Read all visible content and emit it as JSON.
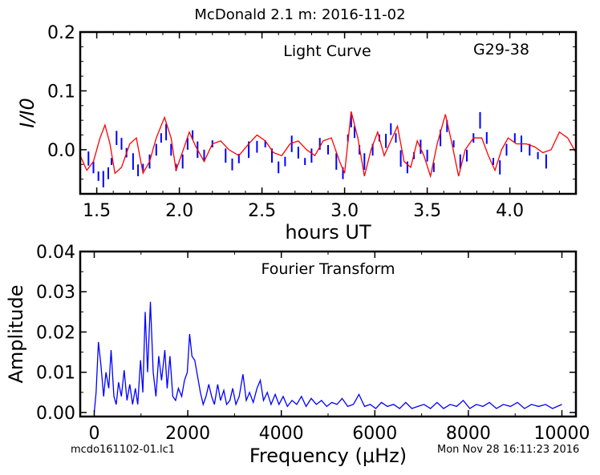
{
  "figure": {
    "title": "McDonald 2.1 m:  2016-11-02",
    "footer_left": "mcdo161102-01.lc1",
    "footer_right": "Mon Nov 28 16:11:23 2016"
  },
  "colors": {
    "data": "#0000ff",
    "fit": "#ff0000",
    "axes": "#000000"
  },
  "chart_data": [
    {
      "type": "line",
      "annotation": "Light Curve",
      "annotation2": "G29-38",
      "xlabel": "hours UT",
      "ylabel": "I/I0",
      "xlim": [
        1.4,
        4.4
      ],
      "ylim": [
        -0.075,
        0.2
      ],
      "xticks": [
        1.5,
        2.0,
        2.5,
        3.0,
        3.5,
        4.0
      ],
      "xtick_labels": [
        "1.5",
        "2.0",
        "2.5",
        "3.0",
        "3.5",
        "4.0"
      ],
      "yticks": [
        0.0,
        0.1,
        0.2
      ],
      "ytick_labels": [
        "0.0",
        "0.1",
        "0.2"
      ],
      "grid": false,
      "series": [
        {
          "kind": "data",
          "style": "blue segments",
          "points": [
            [
              1.45,
              -0.015
            ],
            [
              1.48,
              -0.03
            ],
            [
              1.51,
              -0.045
            ],
            [
              1.54,
              -0.05
            ],
            [
              1.57,
              -0.04
            ],
            [
              1.59,
              -0.02
            ],
            [
              1.62,
              0.02
            ],
            [
              1.65,
              0.01
            ],
            [
              1.68,
              -0.005
            ],
            [
              1.72,
              -0.02
            ],
            [
              1.75,
              -0.035
            ],
            [
              1.78,
              -0.03
            ],
            [
              1.82,
              -0.02
            ],
            [
              1.86,
              0.0
            ],
            [
              1.89,
              0.02
            ],
            [
              1.92,
              0.03
            ],
            [
              1.95,
              0.0
            ],
            [
              1.98,
              -0.03
            ],
            [
              2.02,
              -0.02
            ],
            [
              2.05,
              0.01
            ],
            [
              2.08,
              0.025
            ],
            [
              2.11,
              0.0
            ],
            [
              2.15,
              -0.01
            ],
            [
              2.2,
              0.01
            ],
            [
              2.28,
              -0.01
            ],
            [
              2.32,
              -0.025
            ],
            [
              2.36,
              -0.015
            ],
            [
              2.42,
              0.0
            ],
            [
              2.47,
              0.005
            ],
            [
              2.52,
              0.01
            ],
            [
              2.56,
              -0.01
            ],
            [
              2.6,
              -0.03
            ],
            [
              2.64,
              -0.02
            ],
            [
              2.68,
              0.01
            ],
            [
              2.72,
              -0.005
            ],
            [
              2.76,
              -0.02
            ],
            [
              2.8,
              -0.01
            ],
            [
              2.85,
              0.01
            ],
            [
              2.9,
              0.0
            ],
            [
              2.95,
              -0.02
            ],
            [
              2.99,
              -0.04
            ],
            [
              3.02,
              0.02
            ],
            [
              3.04,
              0.05
            ],
            [
              3.06,
              0.03
            ],
            [
              3.09,
              0.0
            ],
            [
              3.12,
              -0.02
            ],
            [
              3.17,
              0.0
            ],
            [
              3.21,
              0.02
            ],
            [
              3.25,
              0.015
            ],
            [
              3.28,
              0.035
            ],
            [
              3.31,
              0.02
            ],
            [
              3.34,
              -0.015
            ],
            [
              3.38,
              -0.03
            ],
            [
              3.42,
              -0.01
            ],
            [
              3.46,
              0.005
            ],
            [
              3.5,
              -0.01
            ],
            [
              3.54,
              -0.03
            ],
            [
              3.58,
              0.02
            ],
            [
              3.62,
              0.04
            ],
            [
              3.66,
              0.01
            ],
            [
              3.7,
              -0.02
            ],
            [
              3.74,
              -0.01
            ],
            [
              3.78,
              0.02
            ],
            [
              3.82,
              0.05
            ],
            [
              3.86,
              0.02
            ],
            [
              3.9,
              -0.02
            ],
            [
              3.94,
              -0.03
            ],
            [
              3.98,
              0.0
            ],
            [
              4.03,
              0.02
            ],
            [
              4.07,
              0.01
            ],
            [
              4.12,
              0.0
            ],
            [
              4.17,
              -0.01
            ],
            [
              4.22,
              -0.02
            ]
          ]
        },
        {
          "kind": "fit",
          "style": "red line",
          "points": [
            [
              1.4,
              -0.01
            ],
            [
              1.44,
              -0.035
            ],
            [
              1.48,
              -0.02
            ],
            [
              1.52,
              0.02
            ],
            [
              1.55,
              0.042
            ],
            [
              1.58,
              0.01
            ],
            [
              1.61,
              -0.04
            ],
            [
              1.65,
              -0.03
            ],
            [
              1.7,
              0.01
            ],
            [
              1.74,
              0.02
            ],
            [
              1.78,
              -0.04
            ],
            [
              1.82,
              -0.02
            ],
            [
              1.86,
              0.02
            ],
            [
              1.91,
              0.055
            ],
            [
              1.95,
              0.02
            ],
            [
              1.98,
              -0.035
            ],
            [
              2.03,
              0.005
            ],
            [
              2.06,
              0.03
            ],
            [
              2.1,
              0.005
            ],
            [
              2.15,
              -0.02
            ],
            [
              2.2,
              0.01
            ],
            [
              2.25,
              0.015
            ],
            [
              2.3,
              0.0
            ],
            [
              2.36,
              -0.01
            ],
            [
              2.42,
              0.01
            ],
            [
              2.47,
              0.025
            ],
            [
              2.52,
              0.015
            ],
            [
              2.57,
              -0.005
            ],
            [
              2.62,
              -0.01
            ],
            [
              2.67,
              0.01
            ],
            [
              2.72,
              0.015
            ],
            [
              2.77,
              0.0
            ],
            [
              2.82,
              -0.01
            ],
            [
              2.87,
              0.015
            ],
            [
              2.92,
              0.02
            ],
            [
              2.97,
              -0.02
            ],
            [
              3.0,
              -0.04
            ],
            [
              3.04,
              0.065
            ],
            [
              3.08,
              0.02
            ],
            [
              3.12,
              -0.045
            ],
            [
              3.16,
              0.0
            ],
            [
              3.2,
              0.03
            ],
            [
              3.24,
              -0.01
            ],
            [
              3.28,
              0.015
            ],
            [
              3.32,
              0.04
            ],
            [
              3.36,
              -0.02
            ],
            [
              3.4,
              -0.03
            ],
            [
              3.44,
              0.015
            ],
            [
              3.48,
              -0.01
            ],
            [
              3.52,
              -0.045
            ],
            [
              3.56,
              0.01
            ],
            [
              3.61,
              0.06
            ],
            [
              3.65,
              0.01
            ],
            [
              3.69,
              -0.045
            ],
            [
              3.73,
              0.0
            ],
            [
              3.78,
              0.02
            ],
            [
              3.83,
              0.02
            ],
            [
              3.87,
              -0.01
            ],
            [
              3.91,
              -0.035
            ],
            [
              3.95,
              0.0
            ],
            [
              3.99,
              0.02
            ],
            [
              4.04,
              0.01
            ],
            [
              4.1,
              0.01
            ],
            [
              4.15,
              0.005
            ],
            [
              4.2,
              -0.005
            ],
            [
              4.25,
              0.0
            ],
            [
              4.3,
              0.03
            ],
            [
              4.35,
              0.02
            ],
            [
              4.4,
              -0.005
            ]
          ]
        }
      ]
    },
    {
      "type": "line",
      "annotation": "Fourier Transform",
      "xlabel": "Frequency (μHz)",
      "ylabel": "Amplitude",
      "xlim": [
        -300,
        10300
      ],
      "ylim": [
        -0.001,
        0.04
      ],
      "xticks": [
        0,
        2000,
        4000,
        6000,
        8000,
        10000
      ],
      "xtick_labels": [
        "0",
        "2000",
        "4000",
        "6000",
        "8000",
        "10000"
      ],
      "yticks": [
        0.0,
        0.01,
        0.02,
        0.03,
        0.04
      ],
      "ytick_labels": [
        "0.00",
        "0.01",
        "0.02",
        "0.03",
        "0.04"
      ],
      "grid": false,
      "series": [
        {
          "style": "blue line",
          "points": [
            [
              0,
              0.0
            ],
            [
              40,
              0.005
            ],
            [
              90,
              0.0175
            ],
            [
              140,
              0.012
            ],
            [
              200,
              0.004
            ],
            [
              250,
              0.01
            ],
            [
              310,
              0.006
            ],
            [
              360,
              0.0155
            ],
            [
              420,
              0.004
            ],
            [
              470,
              0.002
            ],
            [
              520,
              0.0075
            ],
            [
              580,
              0.004
            ],
            [
              640,
              0.0105
            ],
            [
              700,
              0.003
            ],
            [
              760,
              0.007
            ],
            [
              820,
              0.002
            ],
            [
              880,
              0.006
            ],
            [
              930,
              0.002
            ],
            [
              990,
              0.013
            ],
            [
              1040,
              0.005
            ],
            [
              1090,
              0.025
            ],
            [
              1140,
              0.01
            ],
            [
              1200,
              0.0275
            ],
            [
              1260,
              0.01
            ],
            [
              1320,
              0.004
            ],
            [
              1380,
              0.014
            ],
            [
              1440,
              0.008
            ],
            [
              1510,
              0.0155
            ],
            [
              1560,
              0.006
            ],
            [
              1620,
              0.014
            ],
            [
              1680,
              0.004
            ],
            [
              1740,
              0.003
            ],
            [
              1800,
              0.006
            ],
            [
              1870,
              0.004
            ],
            [
              1930,
              0.008
            ],
            [
              1990,
              0.01
            ],
            [
              2040,
              0.0195
            ],
            [
              2090,
              0.014
            ],
            [
              2150,
              0.013
            ],
            [
              2210,
              0.009
            ],
            [
              2270,
              0.005
            ],
            [
              2330,
              0.002
            ],
            [
              2390,
              0.004
            ],
            [
              2450,
              0.007
            ],
            [
              2510,
              0.004
            ],
            [
              2570,
              0.002
            ],
            [
              2640,
              0.007
            ],
            [
              2700,
              0.003
            ],
            [
              2770,
              0.0055
            ],
            [
              2830,
              0.002
            ],
            [
              2900,
              0.003
            ],
            [
              2960,
              0.006
            ],
            [
              3030,
              0.002
            ],
            [
              3100,
              0.004
            ],
            [
              3180,
              0.0095
            ],
            [
              3250,
              0.003
            ],
            [
              3320,
              0.005
            ],
            [
              3400,
              0.0025
            ],
            [
              3480,
              0.006
            ],
            [
              3550,
              0.008
            ],
            [
              3620,
              0.003
            ],
            [
              3700,
              0.005
            ],
            [
              3780,
              0.002
            ],
            [
              3870,
              0.0045
            ],
            [
              3950,
              0.002
            ],
            [
              4040,
              0.004
            ],
            [
              4130,
              0.0015
            ],
            [
              4230,
              0.003
            ],
            [
              4330,
              0.002
            ],
            [
              4430,
              0.004
            ],
            [
              4530,
              0.0015
            ],
            [
              4640,
              0.0035
            ],
            [
              4750,
              0.002
            ],
            [
              4860,
              0.003
            ],
            [
              4970,
              0.0015
            ],
            [
              5080,
              0.0025
            ],
            [
              5190,
              0.002
            ],
            [
              5300,
              0.0035
            ],
            [
              5420,
              0.0015
            ],
            [
              5540,
              0.002
            ],
            [
              5660,
              0.0045
            ],
            [
              5780,
              0.0015
            ],
            [
              5900,
              0.002
            ],
            [
              6020,
              0.001
            ],
            [
              6140,
              0.0025
            ],
            [
              6270,
              0.0015
            ],
            [
              6400,
              0.002
            ],
            [
              6530,
              0.001
            ],
            [
              6660,
              0.0025
            ],
            [
              6790,
              0.001
            ],
            [
              6920,
              0.0015
            ],
            [
              7050,
              0.002
            ],
            [
              7190,
              0.001
            ],
            [
              7330,
              0.0025
            ],
            [
              7470,
              0.001
            ],
            [
              7610,
              0.002
            ],
            [
              7750,
              0.0015
            ],
            [
              7890,
              0.003
            ],
            [
              8030,
              0.001
            ],
            [
              8170,
              0.002
            ],
            [
              8310,
              0.0015
            ],
            [
              8450,
              0.0025
            ],
            [
              8600,
              0.001
            ],
            [
              8750,
              0.002
            ],
            [
              8900,
              0.0015
            ],
            [
              9050,
              0.0025
            ],
            [
              9200,
              0.001
            ],
            [
              9350,
              0.002
            ],
            [
              9500,
              0.0015
            ],
            [
              9650,
              0.002
            ],
            [
              9800,
              0.001
            ],
            [
              9900,
              0.0015
            ],
            [
              10000,
              0.002
            ]
          ]
        }
      ]
    }
  ]
}
